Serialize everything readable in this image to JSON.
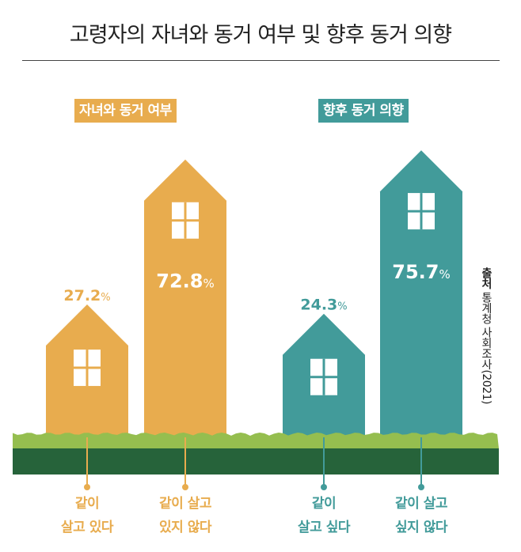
{
  "title": "고령자의 자녀와 동거 여부 및 향후 동거 의향",
  "source_label": "출처",
  "source_text": "통계청 사회조사(2021)",
  "colors": {
    "orange": "#E8AC4E",
    "teal": "#429B9A",
    "grass": "#95BE4F",
    "ground": "#26633A"
  },
  "chart_data": [
    {
      "type": "bar",
      "title": "자녀와 동거 여부",
      "unit": "%",
      "categories": [
        "같이 살고 있다",
        "같이 살고 있지 않다"
      ],
      "category_lines": [
        [
          "같이",
          "살고 있다"
        ],
        [
          "같이 살고",
          "있지 않다"
        ]
      ],
      "values": [
        27.2,
        72.8
      ],
      "value_labels": [
        "27.2",
        "72.8"
      ],
      "color": "#E8AC4E"
    },
    {
      "type": "bar",
      "title": "향후 동거 의향",
      "unit": "%",
      "categories": [
        "같이 살고 싶다",
        "같이 살고 싶지 않다"
      ],
      "category_lines": [
        [
          "같이",
          "살고 싶다"
        ],
        [
          "같이 살고",
          "싶지 않다"
        ]
      ],
      "values": [
        24.3,
        75.7
      ],
      "value_labels": [
        "24.3",
        "75.7"
      ],
      "color": "#429B9A"
    }
  ]
}
